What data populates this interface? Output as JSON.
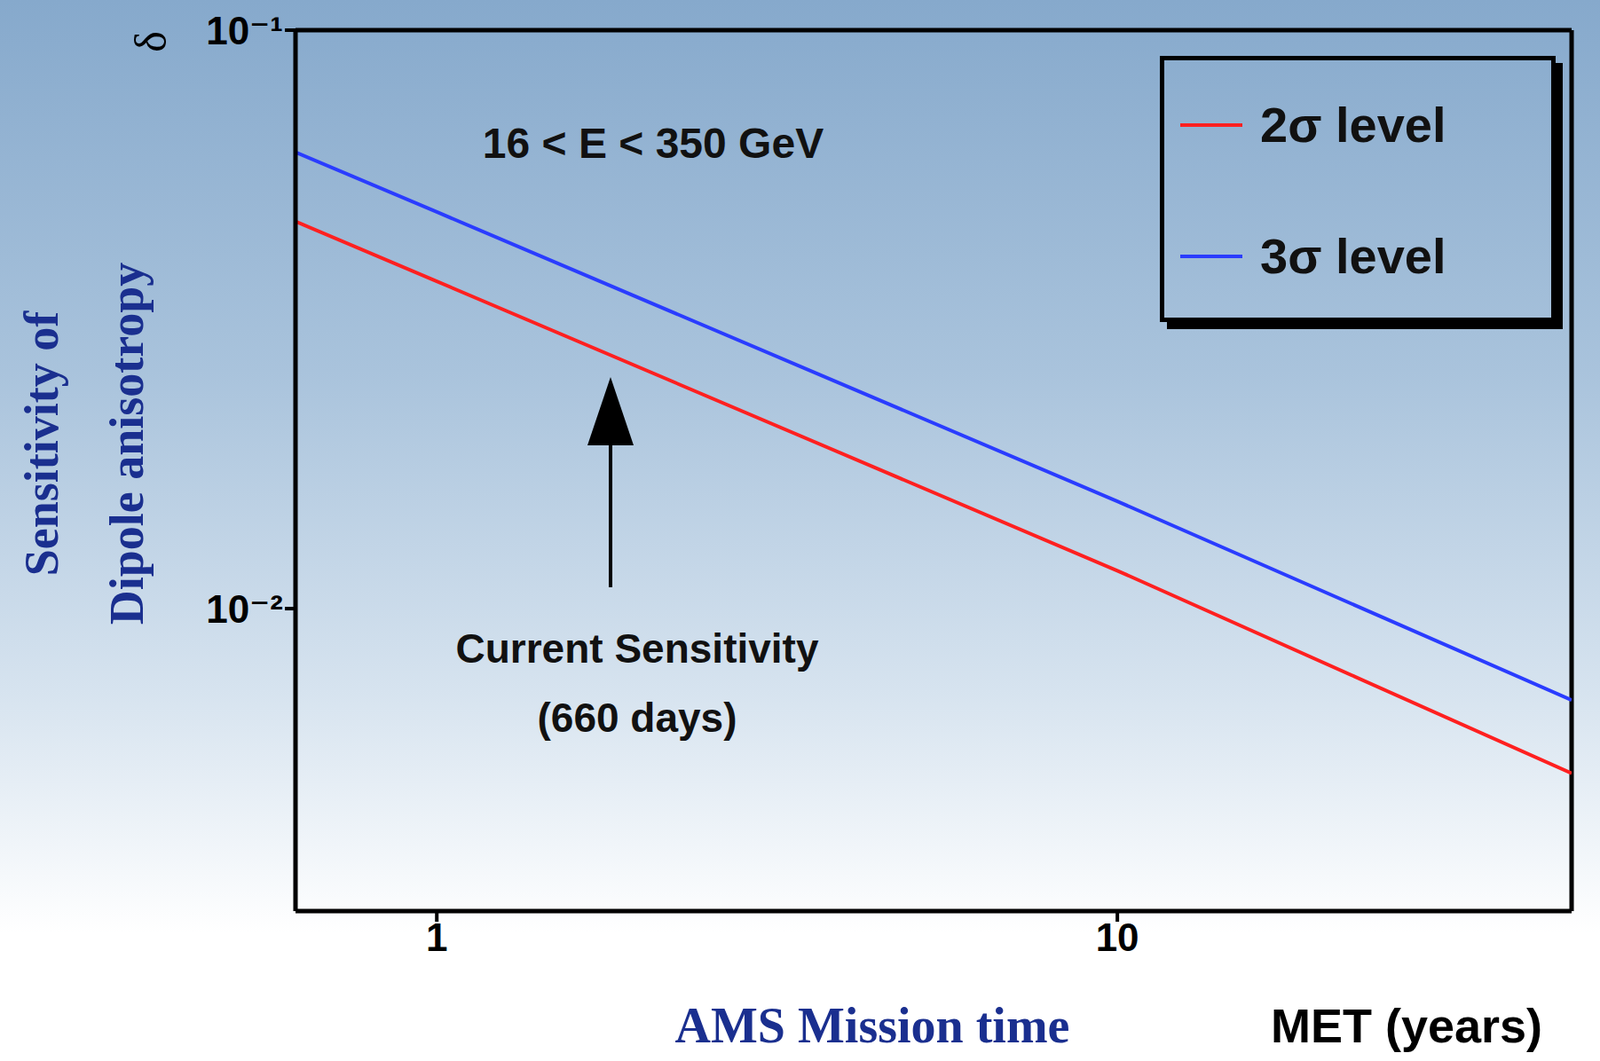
{
  "chart_data": {
    "type": "line",
    "annotation": "16 < E < 350 GeV",
    "arrow_annotation": [
      "Current Sensitivity",
      "(660 days)"
    ],
    "y_symbol": "δ",
    "y_label": "Sensitivity of Dipole anisotropy",
    "x_label": "AMS Mission time",
    "x_unit_label": "MET (years)",
    "log": true,
    "grid": false,
    "legend": "top-right",
    "x": [
      0.62,
      1,
      10,
      46.5
    ],
    "series": [
      {
        "name": "2σ level",
        "color": "#ff2020",
        "values": [
          0.0467,
          0.0368,
          0.01163,
          0.00519
        ]
      },
      {
        "name": "3σ level",
        "color": "#2a3cff",
        "values": [
          0.0615,
          0.0485,
          0.01533,
          0.00695
        ]
      }
    ],
    "xlim": [
      0.62,
      46.5
    ],
    "xticks": [
      1,
      10
    ],
    "ylim": [
      0.003,
      0.1
    ],
    "yticks": [
      {
        "value": 0.01,
        "label": "10⁻²"
      },
      {
        "value": 0.1,
        "label": "10⁻¹"
      }
    ]
  }
}
